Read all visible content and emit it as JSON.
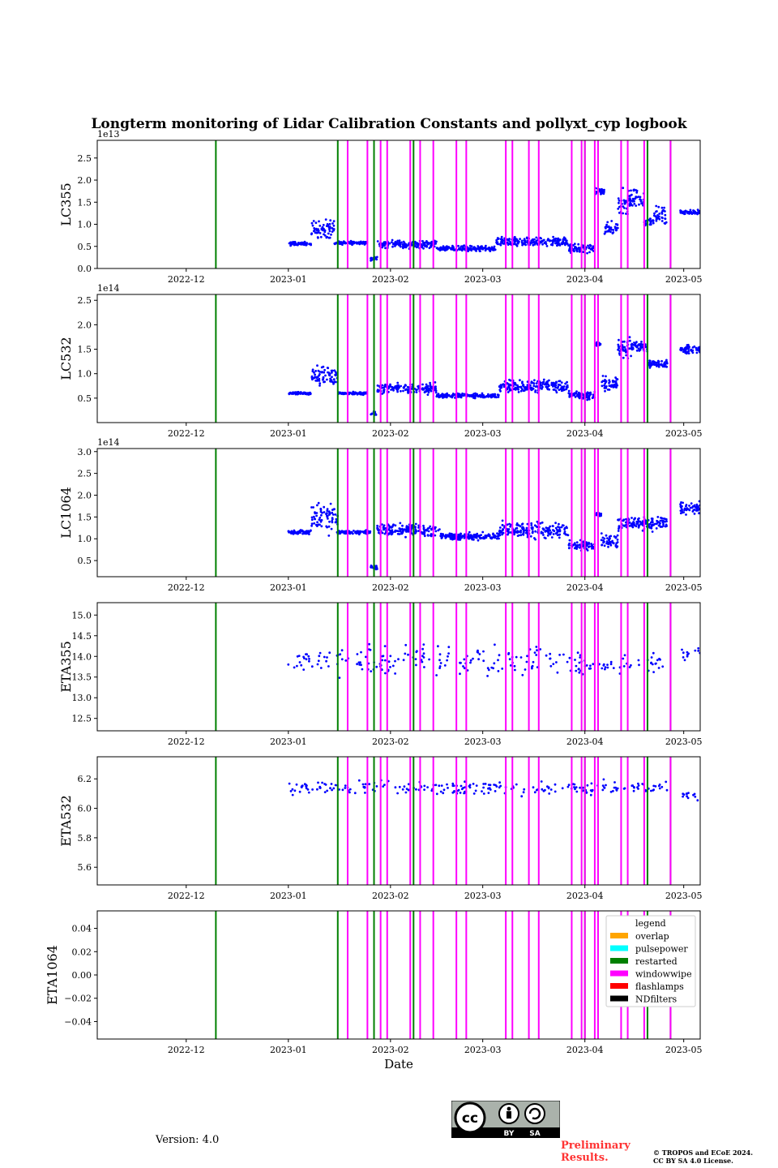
{
  "chart_data": {
    "type": "scatter",
    "title": "Longterm monitoring of Lidar Calibration Constants and pollyxt_cyp logbook",
    "xlabel": "Date",
    "x_range": [
      "2022-11-04",
      "2023-05-06"
    ],
    "x_ticks": [
      "2022-12",
      "2023-01",
      "2023-02",
      "2023-03",
      "2023-04",
      "2023-05"
    ],
    "x_tick_dates": [
      "2022-12-01",
      "2023-01-01",
      "2023-02-01",
      "2023-03-01",
      "2023-04-01",
      "2023-05-01"
    ],
    "point_color": "#0000ff",
    "panels": [
      {
        "ylabel": "LC355",
        "offset": "1e13",
        "ylim": [
          0.0,
          2.9
        ],
        "yticks": [
          0.0,
          0.5,
          1.0,
          1.5,
          2.0,
          2.5
        ],
        "ytick_labels": [
          "0.0",
          "0.5",
          "1.0",
          "1.5",
          "2.0",
          "2.5"
        ],
        "segments": [
          [
            "2023-01-01",
            "2023-01-08",
            0.56,
            0.06
          ],
          [
            "2023-01-08",
            "2023-01-15",
            0.9,
            0.3
          ],
          [
            "2023-01-15",
            "2023-01-25",
            0.58,
            0.05
          ],
          [
            "2023-01-26",
            "2023-01-28",
            0.22,
            0.06
          ],
          [
            "2023-01-28",
            "2023-02-15",
            0.55,
            0.12
          ],
          [
            "2023-02-15",
            "2023-03-05",
            0.45,
            0.08
          ],
          [
            "2023-03-05",
            "2023-03-27",
            0.6,
            0.15
          ],
          [
            "2023-03-27",
            "2023-04-04",
            0.45,
            0.15
          ],
          [
            "2023-04-04",
            "2023-04-07",
            1.75,
            0.12
          ],
          [
            "2023-04-07",
            "2023-04-11",
            0.9,
            0.2
          ],
          [
            "2023-04-11",
            "2023-04-14",
            1.4,
            0.5
          ],
          [
            "2023-04-14",
            "2023-04-19",
            1.6,
            0.35
          ],
          [
            "2023-04-19",
            "2023-04-22",
            1.05,
            0.1
          ],
          [
            "2023-04-22",
            "2023-04-26",
            1.2,
            0.3
          ],
          [
            "2023-04-30",
            "2023-05-06",
            1.28,
            0.08
          ]
        ]
      },
      {
        "ylabel": "LC532",
        "offset": "1e14",
        "ylim": [
          0.0,
          2.62
        ],
        "yticks": [
          0.5,
          1.0,
          1.5,
          2.0,
          2.5
        ],
        "ytick_labels": [
          "0.5",
          "1.0",
          "1.5",
          "2.0",
          "2.5"
        ],
        "segments": [
          [
            "2023-01-01",
            "2023-01-08",
            0.6,
            0.04
          ],
          [
            "2023-01-08",
            "2023-01-16",
            0.95,
            0.3
          ],
          [
            "2023-01-16",
            "2023-01-25",
            0.6,
            0.04
          ],
          [
            "2023-01-26",
            "2023-01-28",
            0.18,
            0.06
          ],
          [
            "2023-01-28",
            "2023-02-15",
            0.7,
            0.15
          ],
          [
            "2023-02-15",
            "2023-03-06",
            0.55,
            0.06
          ],
          [
            "2023-03-06",
            "2023-03-27",
            0.75,
            0.18
          ],
          [
            "2023-03-27",
            "2023-04-04",
            0.55,
            0.12
          ],
          [
            "2023-04-04",
            "2023-04-06",
            1.6,
            0.05
          ],
          [
            "2023-04-06",
            "2023-04-11",
            0.8,
            0.2
          ],
          [
            "2023-04-11",
            "2023-04-15",
            1.5,
            0.3
          ],
          [
            "2023-04-15",
            "2023-04-20",
            1.55,
            0.2
          ],
          [
            "2023-04-20",
            "2023-04-26",
            1.2,
            0.1
          ],
          [
            "2023-04-30",
            "2023-05-06",
            1.5,
            0.12
          ]
        ]
      },
      {
        "ylabel": "LC1064",
        "offset": "1e14",
        "ylim": [
          0.13,
          3.07
        ],
        "yticks": [
          0.5,
          1.0,
          1.5,
          2.0,
          2.5,
          3.0
        ],
        "ytick_labels": [
          "0.5",
          "1.0",
          "1.5",
          "2.0",
          "2.5",
          "3.0"
        ],
        "segments": [
          [
            "2023-01-01",
            "2023-01-08",
            1.15,
            0.08
          ],
          [
            "2023-01-08",
            "2023-01-16",
            1.5,
            0.5
          ],
          [
            "2023-01-16",
            "2023-01-26",
            1.15,
            0.06
          ],
          [
            "2023-01-26",
            "2023-01-28",
            0.35,
            0.08
          ],
          [
            "2023-01-28",
            "2023-02-16",
            1.2,
            0.2
          ],
          [
            "2023-02-16",
            "2023-03-06",
            1.05,
            0.12
          ],
          [
            "2023-03-06",
            "2023-03-27",
            1.2,
            0.25
          ],
          [
            "2023-03-27",
            "2023-04-04",
            0.85,
            0.15
          ],
          [
            "2023-04-04",
            "2023-04-06",
            1.55,
            0.1
          ],
          [
            "2023-04-06",
            "2023-04-11",
            0.95,
            0.2
          ],
          [
            "2023-04-11",
            "2023-04-26",
            1.35,
            0.2
          ],
          [
            "2023-04-30",
            "2023-05-06",
            1.7,
            0.2
          ]
        ]
      },
      {
        "ylabel": "ETA355",
        "offset": "",
        "ylim": [
          12.2,
          15.3
        ],
        "yticks": [
          12.5,
          13.0,
          13.5,
          14.0,
          14.5,
          15.0
        ],
        "ytick_labels": [
          "12.5",
          "13.0",
          "13.5",
          "14.0",
          "14.5",
          "15.0"
        ],
        "segments": [
          [
            "2023-01-01",
            "2023-01-28",
            13.9,
            0.45
          ],
          [
            "2023-01-28",
            "2023-03-27",
            13.9,
            0.55
          ],
          [
            "2023-03-27",
            "2023-04-26",
            13.8,
            0.35
          ],
          [
            "2023-04-30",
            "2023-05-06",
            14.05,
            0.2
          ]
        ]
      },
      {
        "ylabel": "ETA532",
        "offset": "",
        "ylim": [
          5.48,
          6.35
        ],
        "yticks": [
          5.6,
          5.8,
          6.0,
          6.2
        ],
        "ytick_labels": [
          "5.6",
          "5.8",
          "6.0",
          "6.2"
        ],
        "segments": [
          [
            "2023-01-01",
            "2023-04-26",
            6.14,
            0.07
          ],
          [
            "2023-04-30",
            "2023-05-06",
            6.08,
            0.05
          ]
        ]
      },
      {
        "ylabel": "ETA1064",
        "offset": "",
        "ylim": [
          -0.055,
          0.055
        ],
        "yticks": [
          -0.04,
          -0.02,
          0.0,
          0.02,
          0.04
        ],
        "ytick_labels": [
          "−0.04",
          "−0.02",
          "0.00",
          "0.02",
          "0.04"
        ],
        "segments": []
      }
    ],
    "events": {
      "restarted": [
        "2022-12-10",
        "2023-01-16",
        "2023-01-27",
        "2023-02-08",
        "2023-04-01",
        "2023-04-20",
        "2023-04-27"
      ],
      "windowwipe": [
        "2023-01-19",
        "2023-01-25",
        "2023-01-29",
        "2023-01-31",
        "2023-02-07",
        "2023-02-10",
        "2023-02-14",
        "2023-02-21",
        "2023-02-24",
        "2023-03-08",
        "2023-03-10",
        "2023-03-15",
        "2023-03-18",
        "2023-03-28",
        "2023-03-31",
        "2023-04-01",
        "2023-04-04",
        "2023-04-05",
        "2023-04-12",
        "2023-04-14",
        "2023-04-19",
        "2023-04-27"
      ]
    },
    "legend": {
      "title": "legend",
      "placement": "right",
      "entries": [
        {
          "name": "overlap",
          "color": "#ffa500"
        },
        {
          "name": "pulsepower",
          "color": "#00ffff"
        },
        {
          "name": "restarted",
          "color": "#008000"
        },
        {
          "name": "windowwipe",
          "color": "#ff00ff"
        },
        {
          "name": "flashlamps",
          "color": "#ff0000"
        },
        {
          "name": "NDfilters",
          "color": "#000000"
        }
      ]
    }
  },
  "footer": {
    "version": "Version: 4.0",
    "preliminary": "Preliminary\nResults.",
    "copyright": "© TROPOS and ECoE 2024.\nCC BY SA 4.0 License.",
    "cc_icon": "cc-by-sa-badge",
    "cc_by": "BY",
    "cc_sa": "SA"
  }
}
